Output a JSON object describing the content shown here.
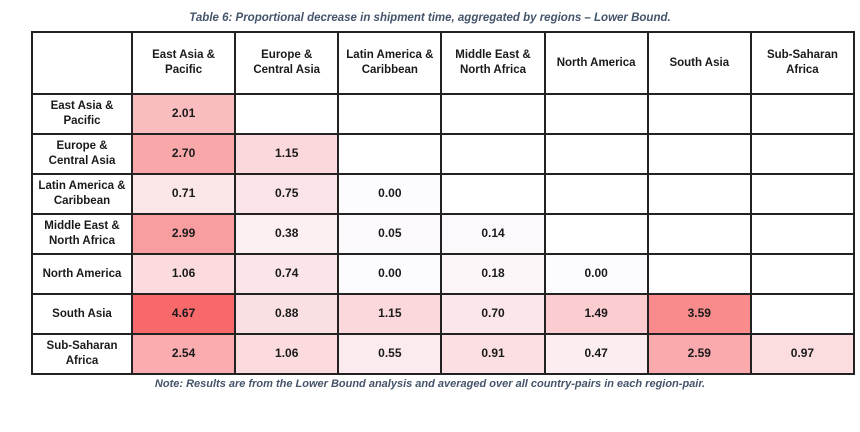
{
  "title": "Table 6: Proportional decrease in shipment time, aggregated by regions – Lower Bound.",
  "note": "Note: Results are from the Lower Bound analysis and averaged over all country-pairs in each region-pair.",
  "colors": {
    "heat_min": "#FCFCFF",
    "heat_max": "#F8696B",
    "caption_text": "#44546A",
    "border": "#222222",
    "cell_text": "#1a1a1a",
    "empty_cell": "#ffffff"
  },
  "table": {
    "corner_label": "",
    "columns": [
      "East Asia & Pacific",
      "Europe & Central Asia",
      "Latin America & Caribbean",
      "Middle East & North Africa",
      "North America",
      "South Asia",
      "Sub-Saharan Africa"
    ],
    "rows": [
      {
        "label": "East Asia & Pacific",
        "values": [
          2.01,
          null,
          null,
          null,
          null,
          null,
          null
        ]
      },
      {
        "label": "Europe & Central Asia",
        "values": [
          2.7,
          1.15,
          null,
          null,
          null,
          null,
          null
        ]
      },
      {
        "label": "Latin America & Caribbean",
        "values": [
          0.71,
          0.75,
          0.0,
          null,
          null,
          null,
          null
        ]
      },
      {
        "label": "Middle East & North Africa",
        "values": [
          2.99,
          0.38,
          0.05,
          0.14,
          null,
          null,
          null
        ]
      },
      {
        "label": "North America",
        "values": [
          1.06,
          0.74,
          0.0,
          0.18,
          0.0,
          null,
          null
        ]
      },
      {
        "label": "South Asia",
        "values": [
          4.67,
          0.88,
          1.15,
          0.7,
          1.49,
          3.59,
          null
        ]
      },
      {
        "label": "Sub-Saharan Africa",
        "values": [
          2.54,
          1.06,
          0.55,
          0.91,
          0.47,
          2.59,
          0.97
        ]
      }
    ],
    "value_range": [
      0,
      4.67
    ],
    "value_decimals": 2
  },
  "chart_data": {
    "type": "heatmap",
    "title": "Table 6: Proportional decrease in shipment time, aggregated by regions – Lower Bound.",
    "x_categories": [
      "East Asia & Pacific",
      "Europe & Central Asia",
      "Latin America & Caribbean",
      "Middle East & North Africa",
      "North America",
      "South Asia",
      "Sub-Saharan Africa"
    ],
    "y_categories": [
      "East Asia & Pacific",
      "Europe & Central Asia",
      "Latin America & Caribbean",
      "Middle East & North Africa",
      "North America",
      "South Asia",
      "Sub-Saharan Africa"
    ],
    "values": [
      [
        2.01,
        null,
        null,
        null,
        null,
        null,
        null
      ],
      [
        2.7,
        1.15,
        null,
        null,
        null,
        null,
        null
      ],
      [
        0.71,
        0.75,
        0.0,
        null,
        null,
        null,
        null
      ],
      [
        2.99,
        0.38,
        0.05,
        0.14,
        null,
        null,
        null
      ],
      [
        1.06,
        0.74,
        0.0,
        0.18,
        0.0,
        null,
        null
      ],
      [
        4.67,
        0.88,
        1.15,
        0.7,
        1.49,
        3.59,
        null
      ],
      [
        2.54,
        1.06,
        0.55,
        0.91,
        0.47,
        2.59,
        0.97
      ]
    ],
    "color_scale": {
      "min_color": "#FCFCFF",
      "max_color": "#F8696B",
      "min_value": 0,
      "max_value": 4.67
    },
    "annotation": "Note: Results are from the Lower Bound analysis and averaged over all country-pairs in each region-pair."
  }
}
